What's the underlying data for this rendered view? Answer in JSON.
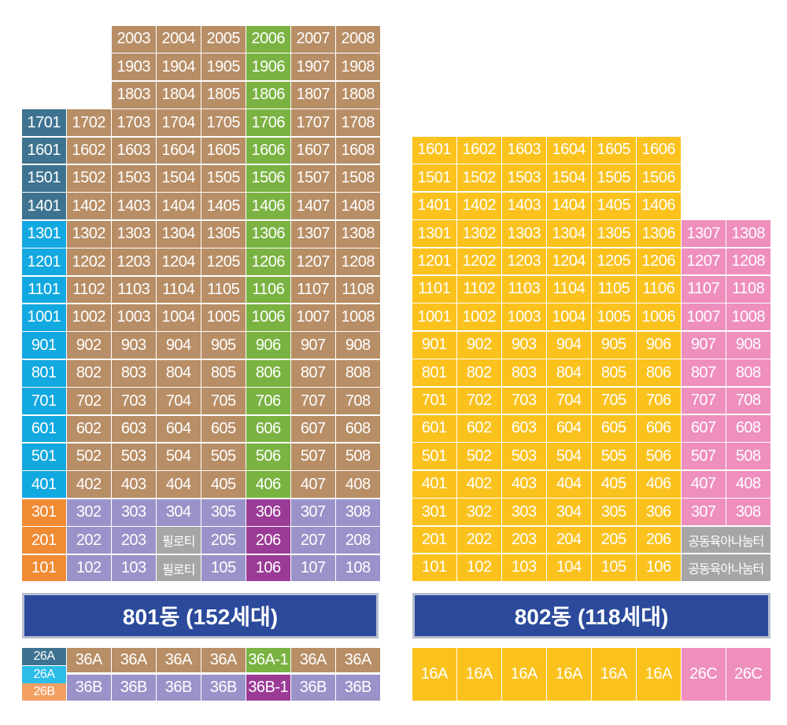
{
  "colors": {
    "brown": "#b88e66",
    "green": "#7ab342",
    "darkTeal": "#3d7390",
    "cyan": "#12a8e0",
    "orange": "#f08a33",
    "lavender": "#9a93c9",
    "gray": "#a6a6a6",
    "purple": "#9a3b96",
    "yellow": "#fbc21e",
    "pink": "#ee8fbe",
    "blue": "#2b4a9c",
    "light_cyan": "#2bbde8",
    "peach": "#f4a064"
  },
  "building801": {
    "title": "801동 (152세대)",
    "rows": [
      [
        "",
        "",
        "2003",
        "2004",
        "2005",
        "2006",
        "2007",
        "2008"
      ],
      [
        "",
        "",
        "1903",
        "1904",
        "1905",
        "1906",
        "1907",
        "1908"
      ],
      [
        "",
        "",
        "1803",
        "1804",
        "1805",
        "1806",
        "1807",
        "1808"
      ],
      [
        "1701",
        "1702",
        "1703",
        "1704",
        "1705",
        "1706",
        "1707",
        "1708"
      ],
      [
        "1601",
        "1602",
        "1603",
        "1604",
        "1605",
        "1606",
        "1607",
        "1608"
      ],
      [
        "1501",
        "1502",
        "1503",
        "1504",
        "1505",
        "1506",
        "1507",
        "1508"
      ],
      [
        "1401",
        "1402",
        "1403",
        "1404",
        "1405",
        "1406",
        "1407",
        "1408"
      ],
      [
        "1301",
        "1302",
        "1303",
        "1304",
        "1305",
        "1306",
        "1307",
        "1308"
      ],
      [
        "1201",
        "1202",
        "1203",
        "1204",
        "1205",
        "1206",
        "1207",
        "1208"
      ],
      [
        "1101",
        "1102",
        "1103",
        "1104",
        "1105",
        "1106",
        "1107",
        "1108"
      ],
      [
        "1001",
        "1002",
        "1003",
        "1004",
        "1005",
        "1006",
        "1007",
        "1008"
      ],
      [
        "901",
        "902",
        "903",
        "904",
        "905",
        "906",
        "907",
        "908"
      ],
      [
        "801",
        "802",
        "803",
        "804",
        "805",
        "806",
        "807",
        "808"
      ],
      [
        "701",
        "702",
        "703",
        "704",
        "705",
        "706",
        "707",
        "708"
      ],
      [
        "601",
        "602",
        "603",
        "604",
        "605",
        "606",
        "607",
        "608"
      ],
      [
        "501",
        "502",
        "503",
        "504",
        "505",
        "506",
        "507",
        "508"
      ],
      [
        "401",
        "402",
        "403",
        "404",
        "405",
        "406",
        "407",
        "408"
      ],
      [
        "301",
        "302",
        "303",
        "304",
        "305",
        "306",
        "307",
        "308"
      ],
      [
        "201",
        "202",
        "203",
        "필로티",
        "205",
        "206",
        "207",
        "208"
      ],
      [
        "101",
        "102",
        "103",
        "필로티",
        "105",
        "106",
        "107",
        "108"
      ]
    ],
    "colorRows": [
      [
        "",
        "",
        "brown",
        "brown",
        "brown",
        "green",
        "brown",
        "brown"
      ],
      [
        "",
        "",
        "brown",
        "brown",
        "brown",
        "green",
        "brown",
        "brown"
      ],
      [
        "",
        "",
        "brown",
        "brown",
        "brown",
        "green",
        "brown",
        "brown"
      ],
      [
        "darkTeal",
        "brown",
        "brown",
        "brown",
        "brown",
        "green",
        "brown",
        "brown"
      ],
      [
        "darkTeal",
        "brown",
        "brown",
        "brown",
        "brown",
        "green",
        "brown",
        "brown"
      ],
      [
        "darkTeal",
        "brown",
        "brown",
        "brown",
        "brown",
        "green",
        "brown",
        "brown"
      ],
      [
        "darkTeal",
        "brown",
        "brown",
        "brown",
        "brown",
        "green",
        "brown",
        "brown"
      ],
      [
        "cyan",
        "brown",
        "brown",
        "brown",
        "brown",
        "green",
        "brown",
        "brown"
      ],
      [
        "cyan",
        "brown",
        "brown",
        "brown",
        "brown",
        "green",
        "brown",
        "brown"
      ],
      [
        "cyan",
        "brown",
        "brown",
        "brown",
        "brown",
        "green",
        "brown",
        "brown"
      ],
      [
        "cyan",
        "brown",
        "brown",
        "brown",
        "brown",
        "green",
        "brown",
        "brown"
      ],
      [
        "cyan",
        "brown",
        "brown",
        "brown",
        "brown",
        "green",
        "brown",
        "brown"
      ],
      [
        "cyan",
        "brown",
        "brown",
        "brown",
        "brown",
        "green",
        "brown",
        "brown"
      ],
      [
        "cyan",
        "brown",
        "brown",
        "brown",
        "brown",
        "green",
        "brown",
        "brown"
      ],
      [
        "cyan",
        "brown",
        "brown",
        "brown",
        "brown",
        "green",
        "brown",
        "brown"
      ],
      [
        "cyan",
        "brown",
        "brown",
        "brown",
        "brown",
        "green",
        "brown",
        "brown"
      ],
      [
        "cyan",
        "brown",
        "brown",
        "brown",
        "brown",
        "green",
        "brown",
        "brown"
      ],
      [
        "orange",
        "lavender",
        "lavender",
        "lavender",
        "lavender",
        "purple",
        "lavender",
        "lavender"
      ],
      [
        "orange",
        "lavender",
        "lavender",
        "gray",
        "lavender",
        "purple",
        "lavender",
        "lavender"
      ],
      [
        "orange",
        "lavender",
        "lavender",
        "gray",
        "lavender",
        "purple",
        "lavender",
        "lavender"
      ]
    ],
    "legend": [
      {
        "label": "26A",
        "color": "darkTeal"
      },
      {
        "label": "26A",
        "color": "light_cyan"
      },
      {
        "label": "26B",
        "color": "peach"
      }
    ],
    "typesTop": [
      {
        "label": "36A",
        "color": "brown"
      },
      {
        "label": "36A",
        "color": "brown"
      },
      {
        "label": "36A",
        "color": "brown"
      },
      {
        "label": "36A",
        "color": "brown"
      },
      {
        "label": "36A-1",
        "color": "green"
      },
      {
        "label": "36A",
        "color": "brown"
      },
      {
        "label": "36A",
        "color": "brown"
      }
    ],
    "typesBottom": [
      {
        "label": "36B",
        "color": "lavender"
      },
      {
        "label": "36B",
        "color": "lavender"
      },
      {
        "label": "36B",
        "color": "lavender"
      },
      {
        "label": "36B",
        "color": "lavender"
      },
      {
        "label": "36B-1",
        "color": "purple"
      },
      {
        "label": "36B",
        "color": "lavender"
      },
      {
        "label": "36B",
        "color": "lavender"
      }
    ]
  },
  "building802": {
    "title": "802동 (118세대)",
    "rows": [
      [
        "1601",
        "1602",
        "1603",
        "1604",
        "1605",
        "1606",
        "",
        ""
      ],
      [
        "1501",
        "1502",
        "1503",
        "1504",
        "1505",
        "1506",
        "",
        ""
      ],
      [
        "1401",
        "1402",
        "1403",
        "1404",
        "1405",
        "1406",
        "",
        ""
      ],
      [
        "1301",
        "1302",
        "1303",
        "1304",
        "1305",
        "1306",
        "1307",
        "1308"
      ],
      [
        "1201",
        "1202",
        "1203",
        "1204",
        "1205",
        "1206",
        "1207",
        "1208"
      ],
      [
        "1101",
        "1102",
        "1103",
        "1104",
        "1105",
        "1106",
        "1107",
        "1108"
      ],
      [
        "1001",
        "1002",
        "1003",
        "1004",
        "1005",
        "1006",
        "1007",
        "1008"
      ],
      [
        "901",
        "902",
        "903",
        "904",
        "905",
        "906",
        "907",
        "908"
      ],
      [
        "801",
        "802",
        "803",
        "804",
        "805",
        "806",
        "807",
        "808"
      ],
      [
        "701",
        "702",
        "703",
        "704",
        "705",
        "706",
        "707",
        "708"
      ],
      [
        "601",
        "602",
        "603",
        "604",
        "605",
        "606",
        "607",
        "608"
      ],
      [
        "501",
        "502",
        "503",
        "504",
        "505",
        "506",
        "507",
        "508"
      ],
      [
        "401",
        "402",
        "403",
        "404",
        "405",
        "406",
        "407",
        "408"
      ],
      [
        "301",
        "302",
        "303",
        "304",
        "305",
        "306",
        "307",
        "308"
      ],
      [
        "201",
        "202",
        "203",
        "204",
        "205",
        "206",
        "공동육아나눔터",
        ""
      ],
      [
        "101",
        "102",
        "103",
        "104",
        "105",
        "106",
        "공동육아나눔터",
        ""
      ]
    ],
    "types": [
      {
        "label": "16A",
        "color": "yellow"
      },
      {
        "label": "16A",
        "color": "yellow"
      },
      {
        "label": "16A",
        "color": "yellow"
      },
      {
        "label": "16A",
        "color": "yellow"
      },
      {
        "label": "16A",
        "color": "yellow"
      },
      {
        "label": "16A",
        "color": "yellow"
      },
      {
        "label": "26C",
        "color": "pink"
      },
      {
        "label": "26C",
        "color": "pink"
      }
    ]
  }
}
